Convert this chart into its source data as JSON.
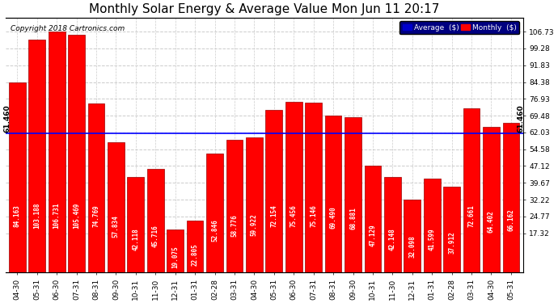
{
  "title": "Monthly Solar Energy & Average Value Mon Jun 11 20:17",
  "copyright": "Copyright 2018 Cartronics.com",
  "categories": [
    "04-30",
    "05-31",
    "06-30",
    "07-31",
    "08-31",
    "09-30",
    "10-31",
    "11-30",
    "12-31",
    "01-31",
    "02-28",
    "03-31",
    "04-30",
    "05-31",
    "06-30",
    "07-31",
    "08-31",
    "09-30",
    "10-31",
    "11-30",
    "12-31",
    "01-31",
    "02-28",
    "03-31",
    "04-30",
    "05-31"
  ],
  "values": [
    84.163,
    103.188,
    106.731,
    105.469,
    74.769,
    57.834,
    42.118,
    45.716,
    19.075,
    22.805,
    52.846,
    58.776,
    59.922,
    72.154,
    75.456,
    75.146,
    69.49,
    68.881,
    47.129,
    42.148,
    32.098,
    41.599,
    37.912,
    72.661,
    64.402,
    66.162
  ],
  "average_line": 61.46,
  "bar_color": "#FF0000",
  "bar_edge_color": "#990000",
  "average_line_color": "#0000FF",
  "background_color": "#FFFFFF",
  "plot_bg_color": "#FFFFFF",
  "grid_color": "#CCCCCC",
  "yticks": [
    17.32,
    24.77,
    32.22,
    39.67,
    47.12,
    54.58,
    62.03,
    69.48,
    76.93,
    84.38,
    91.83,
    99.28,
    106.73
  ],
  "ylim": [
    0,
    113.0
  ],
  "legend_avg_color": "#0000CD",
  "legend_monthly_color": "#FF0000",
  "avg_label": "Average  ($)",
  "monthly_label": "Monthly  ($)",
  "avg_annotation": "61.460",
  "title_fontsize": 11,
  "tick_fontsize": 6.5,
  "bar_value_fontsize": 5.5,
  "dpi": 100,
  "figsize": [
    6.9,
    3.75
  ]
}
